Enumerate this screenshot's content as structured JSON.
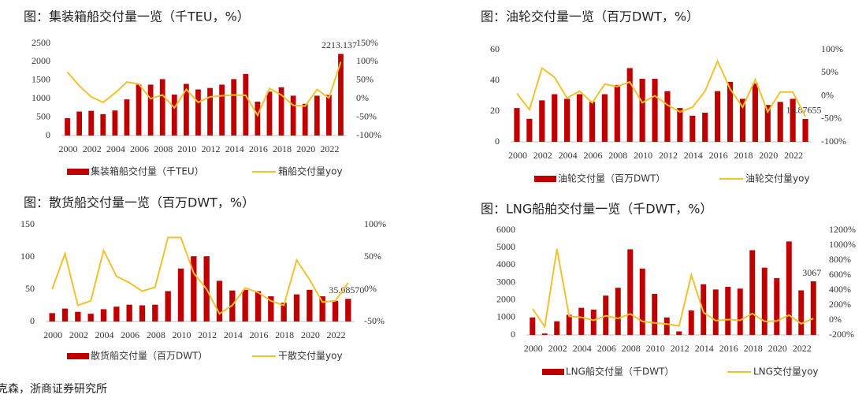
{
  "source": "克森，浙商证券研究所",
  "chart_data": [
    {
      "type": "bar",
      "title": "图：集装箱船交付量一览（千TEU，%）",
      "x": [
        2000,
        2001,
        2002,
        2003,
        2004,
        2005,
        2006,
        2007,
        2008,
        2009,
        2010,
        2011,
        2012,
        2013,
        2014,
        2015,
        2016,
        2017,
        2018,
        2019,
        2020,
        2021,
        2022,
        2023
      ],
      "xlim": [
        1999.5,
        2023.5
      ],
      "xticks": [
        2000,
        2002,
        2004,
        2006,
        2008,
        2010,
        2012,
        2014,
        2016,
        2018,
        2020,
        2022
      ],
      "ylim": [
        0,
        2500
      ],
      "yticks": [
        0,
        500,
        1000,
        1500,
        2000,
        2500
      ],
      "y2lim": [
        -100,
        150
      ],
      "y2ticks": [
        {
          "value": -100,
          "label": "-100%"
        },
        {
          "value": -50,
          "label": "-50%"
        },
        {
          "value": 0,
          "label": "0%"
        },
        {
          "value": 50,
          "label": "50%"
        },
        {
          "value": 100,
          "label": "100%"
        },
        {
          "value": 150,
          "label": "150%"
        }
      ],
      "series": [
        {
          "name": "集装箱船交付量（千TEU）",
          "color": "#c00000",
          "values": [
            470,
            650,
            670,
            580,
            680,
            980,
            1380,
            1380,
            1530,
            1110,
            1400,
            1250,
            1290,
            1380,
            1530,
            1670,
            920,
            1190,
            1310,
            1080,
            860,
            1080,
            1100,
            2213.137
          ],
          "value_labels": [
            null,
            null,
            null,
            null,
            null,
            null,
            null,
            null,
            null,
            null,
            null,
            null,
            null,
            null,
            null,
            null,
            null,
            null,
            null,
            null,
            null,
            null,
            null,
            "2213.137"
          ]
        },
        {
          "name": "箱船交付量yoy",
          "color": "#f2c12e",
          "axis": "y2",
          "values": [
            72,
            35,
            5,
            -10,
            15,
            45,
            40,
            0,
            10,
            -25,
            25,
            -10,
            5,
            8,
            10,
            9,
            -45,
            28,
            10,
            -18,
            -20,
            25,
            2,
            100
          ]
        }
      ]
    },
    {
      "type": "bar",
      "title": "图：油轮交付量一览（百万DWT，%）",
      "x": [
        2000,
        2001,
        2002,
        2003,
        2004,
        2005,
        2006,
        2007,
        2008,
        2009,
        2010,
        2011,
        2012,
        2013,
        2014,
        2015,
        2016,
        2017,
        2018,
        2019,
        2020,
        2021,
        2022,
        2023
      ],
      "xlim": [
        1999.5,
        2023.5
      ],
      "xticks": [
        2000,
        2002,
        2004,
        2006,
        2008,
        2010,
        2012,
        2014,
        2016,
        2018,
        2020,
        2022
      ],
      "ylim": [
        0,
        60
      ],
      "yticks": [
        0,
        20,
        40,
        60
      ],
      "y2lim": [
        -100,
        100
      ],
      "y2ticks": [
        {
          "value": -100,
          "label": "-100%"
        },
        {
          "value": -50,
          "label": "-50%"
        },
        {
          "value": 0,
          "label": "0%"
        },
        {
          "value": 50,
          "label": "50%"
        },
        {
          "value": 100,
          "label": "100%"
        }
      ],
      "series": [
        {
          "name": "油轮交付量（百万DWT）",
          "color": "#c00000",
          "values": [
            22,
            15,
            27,
            31,
            28,
            31,
            26,
            31,
            37,
            48,
            41,
            41,
            33,
            22,
            17,
            19,
            33,
            39,
            28,
            38,
            24,
            26,
            28,
            14.87655
          ],
          "value_labels": [
            null,
            null,
            null,
            null,
            null,
            null,
            null,
            null,
            null,
            null,
            null,
            null,
            null,
            null,
            null,
            null,
            null,
            null,
            null,
            null,
            null,
            null,
            null,
            "14.87655"
          ]
        },
        {
          "name": "油轮交付量yoy",
          "color": "#f2c12e",
          "axis": "y2",
          "values": [
            5,
            -30,
            60,
            40,
            -5,
            10,
            -15,
            25,
            20,
            30,
            -15,
            0,
            -20,
            -35,
            -25,
            10,
            75,
            15,
            -25,
            35,
            -35,
            8,
            8,
            -45
          ]
        }
      ]
    },
    {
      "type": "bar",
      "title": "图：散货船交付量一览（百万DWT，%）",
      "x": [
        2000,
        2001,
        2002,
        2003,
        2004,
        2005,
        2006,
        2007,
        2008,
        2009,
        2010,
        2011,
        2012,
        2013,
        2014,
        2015,
        2016,
        2017,
        2018,
        2019,
        2020,
        2021,
        2022,
        2023
      ],
      "xlim": [
        1999.5,
        2023.5
      ],
      "xticks": [
        2000,
        2002,
        2004,
        2006,
        2008,
        2010,
        2012,
        2014,
        2016,
        2018,
        2020,
        2022
      ],
      "ylim": [
        0,
        150
      ],
      "yticks": [
        0,
        50,
        100,
        150
      ],
      "y2lim": [
        -50,
        100
      ],
      "y2ticks": [
        {
          "value": -50,
          "label": "-50%"
        },
        {
          "value": 0,
          "label": "0%"
        },
        {
          "value": 50,
          "label": "50%"
        },
        {
          "value": 100,
          "label": "100%"
        }
      ],
      "series": [
        {
          "name": "散货船交付量（百万DWT）",
          "color": "#c00000",
          "values": [
            13,
            20,
            15,
            12,
            19,
            23,
            26,
            25,
            26,
            47,
            82,
            101,
            101,
            63,
            48,
            49,
            47,
            39,
            29,
            42,
            49,
            39,
            32,
            35.0857
          ],
          "value_labels": [
            null,
            null,
            null,
            null,
            null,
            null,
            null,
            null,
            null,
            null,
            null,
            null,
            null,
            null,
            null,
            null,
            null,
            null,
            null,
            null,
            null,
            null,
            null,
            "35.08570"
          ]
        },
        {
          "name": "干散交付量yoy",
          "color": "#f2c12e",
          "axis": "y2",
          "values": [
            0,
            55,
            -25,
            -18,
            60,
            20,
            10,
            -3,
            3,
            80,
            80,
            25,
            0,
            -38,
            -25,
            2,
            -5,
            -18,
            -25,
            45,
            15,
            -20,
            -18,
            10
          ]
        }
      ]
    },
    {
      "type": "bar",
      "title": "图：LNG船舶交付量一览（千DWT，%）",
      "x": [
        2000,
        2001,
        2002,
        2003,
        2004,
        2005,
        2006,
        2007,
        2008,
        2009,
        2010,
        2011,
        2012,
        2013,
        2014,
        2015,
        2016,
        2017,
        2018,
        2019,
        2020,
        2021,
        2022,
        2023
      ],
      "xlim": [
        1999.5,
        2023.5
      ],
      "xticks": [
        2000,
        2002,
        2004,
        2006,
        2008,
        2010,
        2012,
        2014,
        2016,
        2018,
        2020,
        2022
      ],
      "ylim": [
        0,
        6000
      ],
      "yticks": [
        0,
        1000,
        2000,
        3000,
        4000,
        5000,
        6000
      ],
      "y2lim": [
        -200,
        1200
      ],
      "y2ticks": [
        {
          "value": -200,
          "label": "-200%"
        },
        {
          "value": 0,
          "label": "0%"
        },
        {
          "value": 200,
          "label": "200%"
        },
        {
          "value": 400,
          "label": "400%"
        },
        {
          "value": 600,
          "label": "600%"
        },
        {
          "value": 800,
          "label": "800%"
        },
        {
          "value": 1000,
          "label": "1000%"
        },
        {
          "value": 1200,
          "label": "1200%"
        }
      ],
      "series": [
        {
          "name": "LNG船交付量（千DWT）",
          "color": "#c00000",
          "values": [
            1000,
            80,
            780,
            1150,
            1550,
            1450,
            2250,
            2700,
            4900,
            3800,
            2350,
            1000,
            200,
            1400,
            2900,
            2600,
            2750,
            2650,
            4850,
            3850,
            3250,
            5350,
            2550,
            3067
          ],
          "value_labels": [
            null,
            null,
            null,
            null,
            null,
            null,
            null,
            null,
            null,
            null,
            null,
            null,
            null,
            null,
            null,
            null,
            null,
            null,
            null,
            null,
            null,
            null,
            null,
            "3067"
          ]
        },
        {
          "name": "LNG交付量yoy",
          "color": "#f2c12e",
          "axis": "y2",
          "values": [
            150,
            -90,
            950,
            50,
            35,
            -5,
            55,
            20,
            80,
            -20,
            -40,
            -55,
            -80,
            600,
            100,
            -10,
            5,
            -5,
            85,
            -20,
            -15,
            65,
            -50,
            20
          ]
        }
      ]
    }
  ]
}
